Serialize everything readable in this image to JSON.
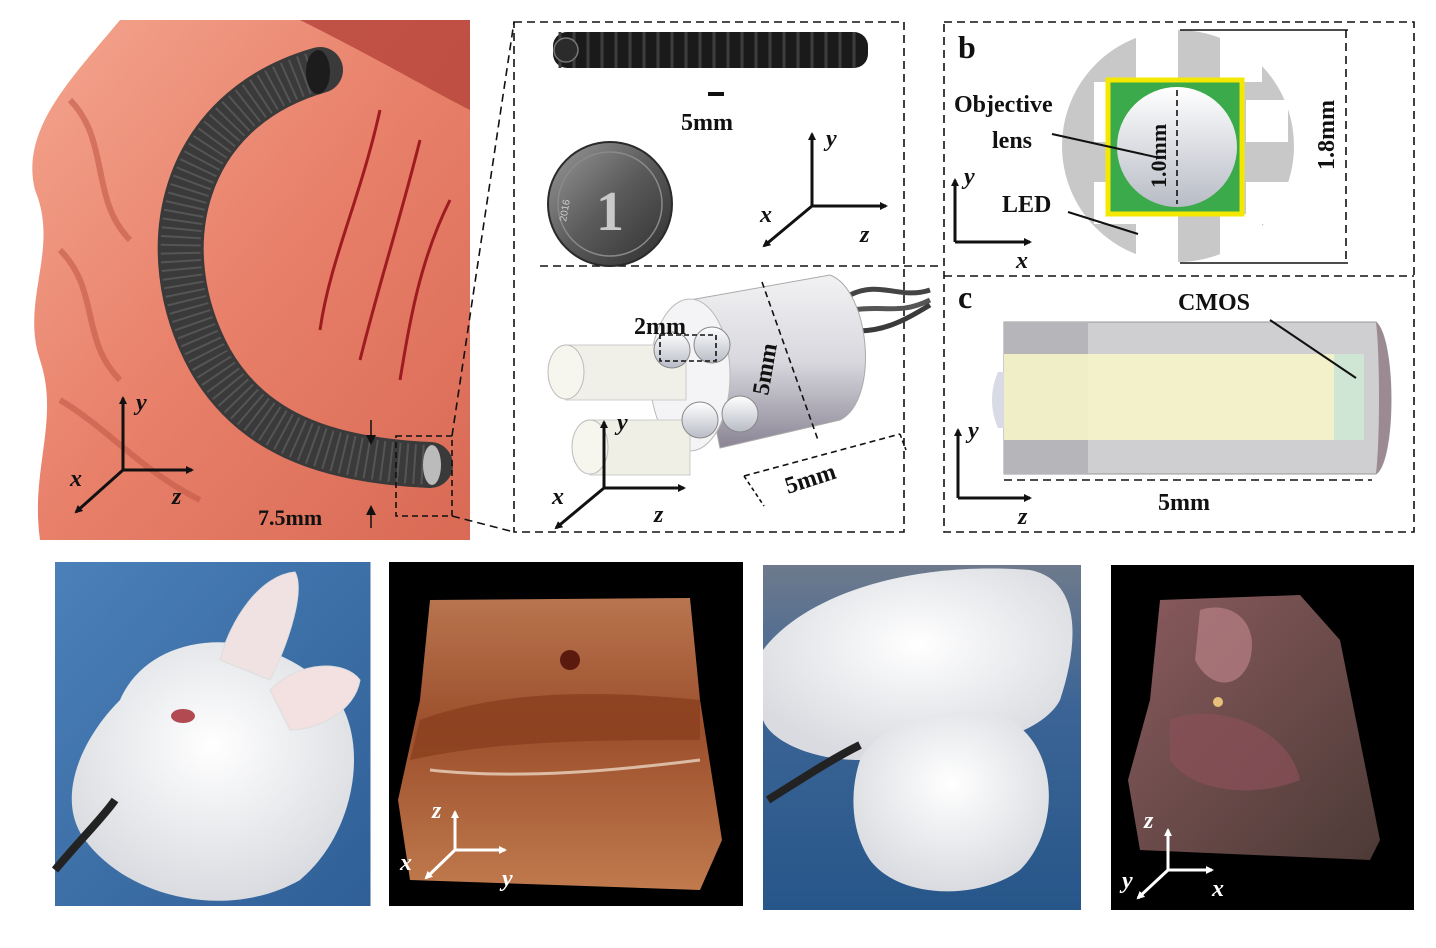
{
  "panel_a": {
    "dimension_label": "7.5mm",
    "axis_x": "x",
    "axis_y": "y",
    "axis_z": "z"
  },
  "panel_probe_photo": {
    "scale_label": "5mm",
    "coin_year": "2016",
    "coin_denomination": "1",
    "axis_x": "x",
    "axis_y": "y",
    "axis_z": "z"
  },
  "panel_probe_model": {
    "spacing_label": "2mm",
    "diameter_label": "5mm",
    "length_label": "5mm",
    "axis_x": "x",
    "axis_y": "y",
    "axis_z": "z"
  },
  "panel_b": {
    "letter": "b",
    "objective_label_line1": "Objective",
    "objective_label_line2": "lens",
    "led_label": "LED",
    "inner_dim_label": "1.0mm",
    "outer_dim_label": "1.8mm",
    "axis_x": "x",
    "axis_y": "y"
  },
  "panel_c": {
    "letter": "c",
    "cmos_label": "CMOS",
    "length_label": "5mm",
    "axis_y": "y",
    "axis_z": "z"
  },
  "bottom_row": {
    "recon1_axes": {
      "z": "z",
      "x": "x",
      "y": "y"
    },
    "recon2_axes": {
      "z": "z",
      "x": "x",
      "y": "y"
    }
  },
  "colors": {
    "tissue": "#e8806a",
    "tube": "#3a3a3a",
    "led_green": "#3aaa4a",
    "yellow_border": "#f4e800",
    "drape_blue": "#3d6fa8"
  }
}
